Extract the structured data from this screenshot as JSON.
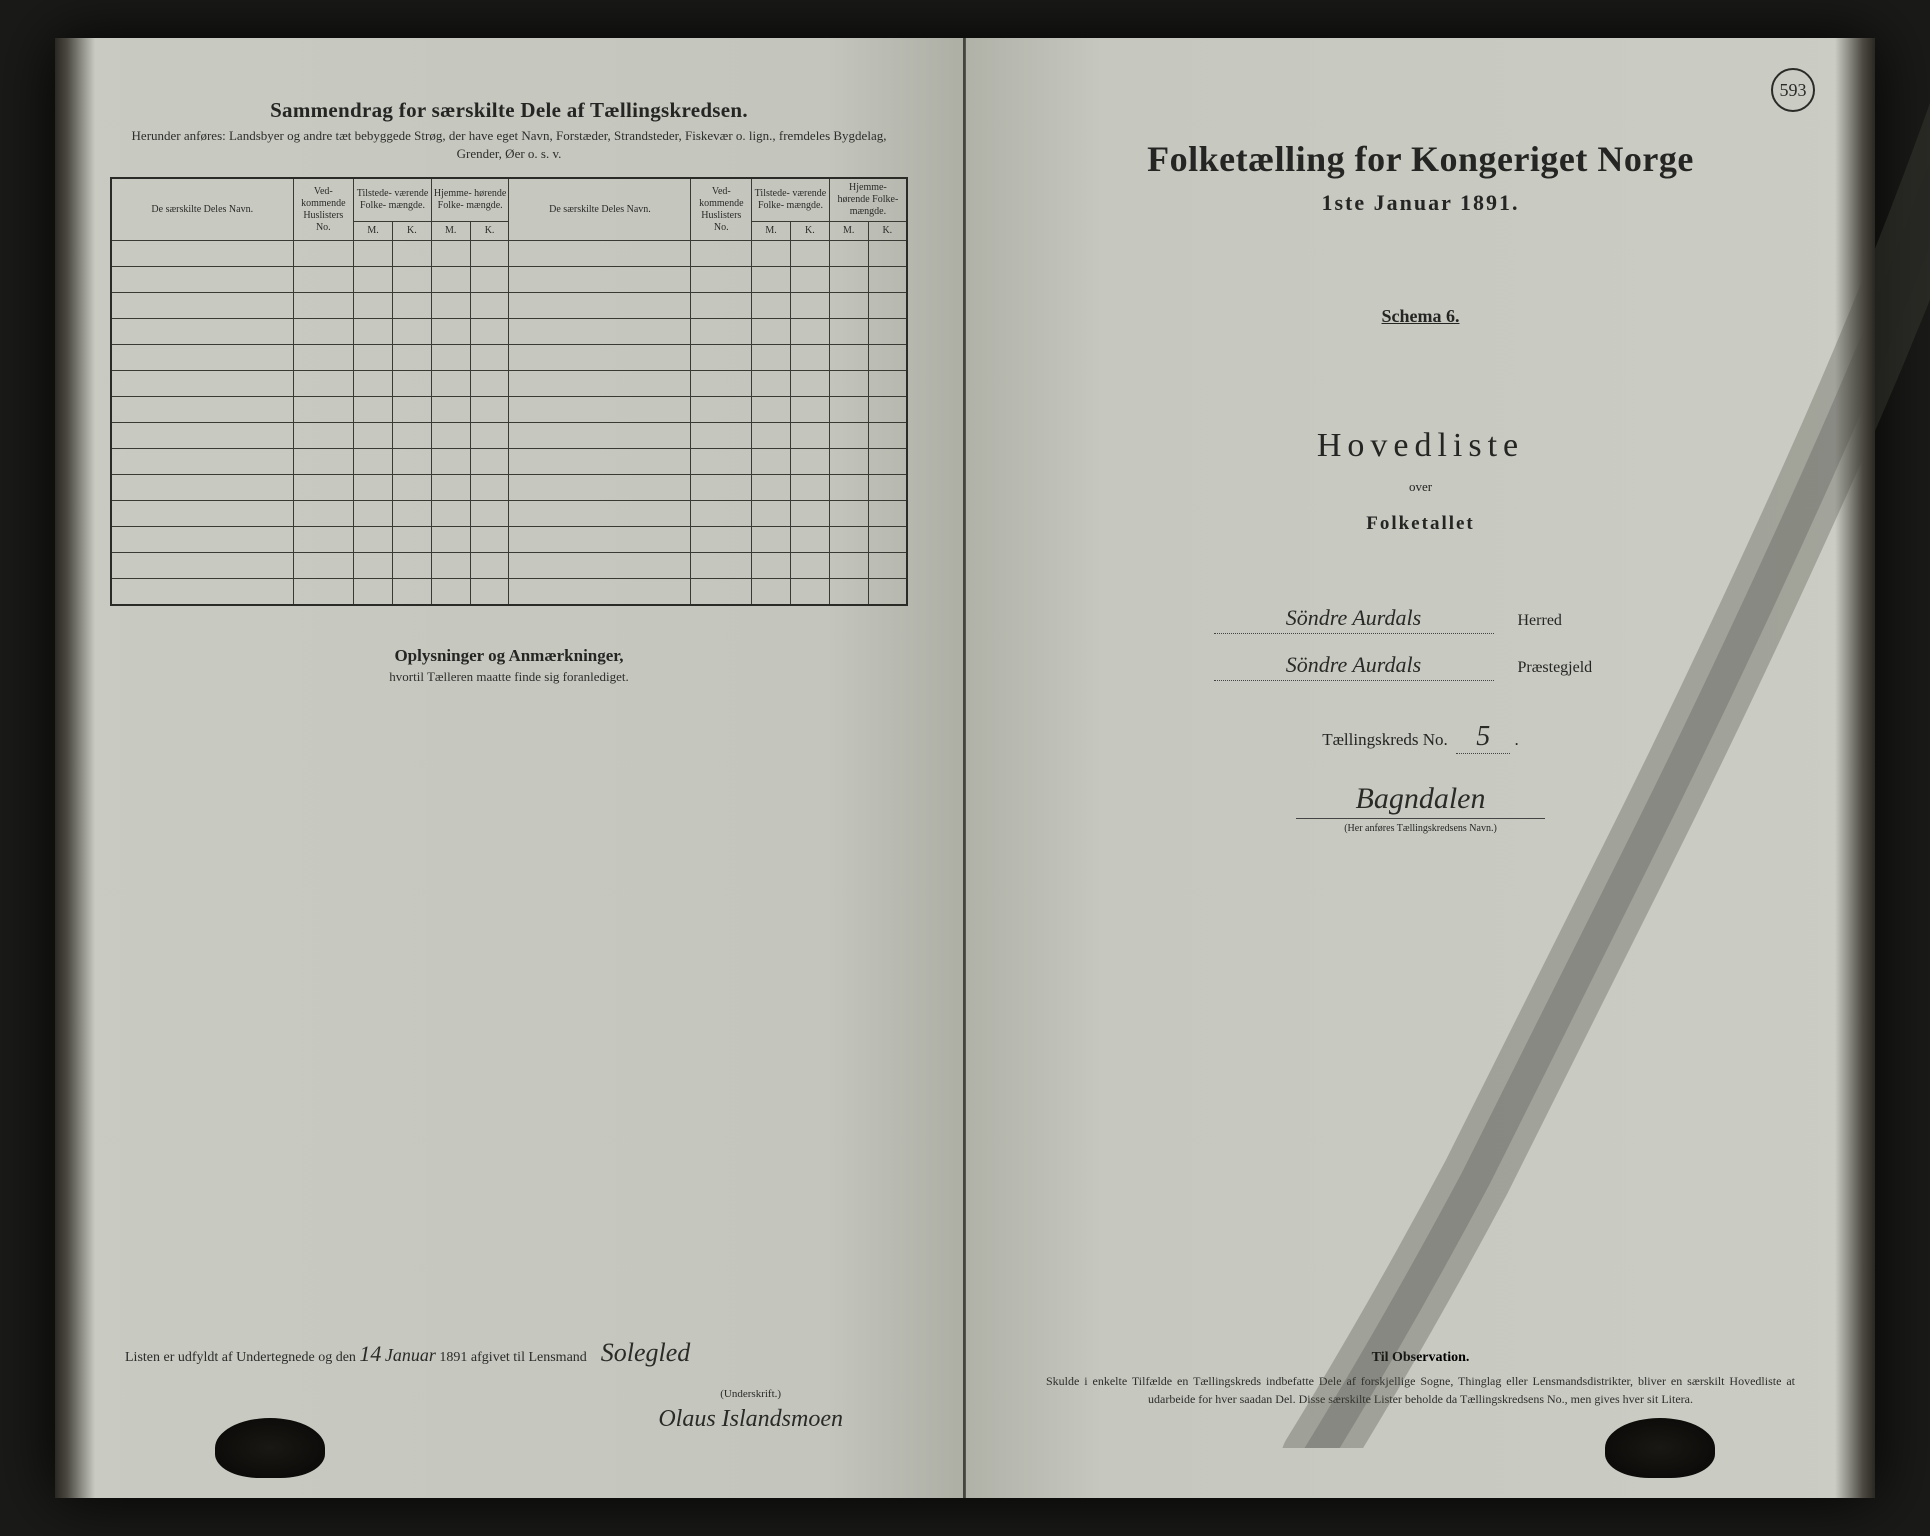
{
  "colors": {
    "paper": "#c6c8c0",
    "ink": "#252523",
    "border": "#2a2a27",
    "background": "#1a1a18"
  },
  "pageNumber": "593",
  "left": {
    "title": "Sammendrag for særskilte Dele af Tællingskredsen.",
    "subtitle": "Herunder anføres: Landsbyer og andre tæt bebyggede Strøg, der have eget Navn, Forstæder, Strandsteder, Fiskevær o. lign., fremdeles Bygdelag, Grender, Øer o. s. v.",
    "columns": {
      "name": "De særskilte Deles Navn.",
      "huslister": "Ved-\nkommende\nHuslisters\nNo.",
      "tilstede": "Tilstede-\nværende\nFolke-\nmængde.",
      "hjemme": "Hjemme-\nhørende\nFolke-\nmængde.",
      "m": "M.",
      "k": "K."
    },
    "blankRows": 14,
    "oplysninger": {
      "title": "Oplysninger og Anmærkninger,",
      "sub": "hvortil Tælleren maatte finde sig foranlediget."
    },
    "bottom": {
      "prefix": "Listen er udfyldt af Undertegnede og den",
      "date_day": "14",
      "date_month": "Januar",
      "date_year": "1891",
      "middle": "afgivet til Lensmand",
      "lensmand": "Solegled",
      "underskrift_label": "(Underskrift.)",
      "signature": "Olaus Islandsmoen"
    }
  },
  "right": {
    "title": "Folketælling for Kongeriget Norge",
    "date": "1ste Januar 1891.",
    "schema": "Schema 6.",
    "hovedliste": "Hovedliste",
    "over": "over",
    "folketallet": "Folketallet",
    "herred": {
      "value": "Söndre Aurdals",
      "label": "Herred"
    },
    "praestegjeld": {
      "value": "Söndre Aurdals",
      "label": "Præstegjeld"
    },
    "kreds": {
      "prefix": "Tællingskreds No.",
      "no": "5"
    },
    "kreds_name": "Bagndalen",
    "kreds_hint": "(Her anføres Tællingskredsens Navn.)",
    "observation": {
      "title": "Til Observation.",
      "text": "Skulde i enkelte Tilfælde en Tællingskreds indbefatte Dele af forskjellige Sogne, Thinglag eller Lensmandsdistrikter, bliver en særskilt Hovedliste at udarbeide for hver saadan Del. Disse særskilte Lister beholde da Tællingskredsens No., men gives hver sit Litera."
    }
  }
}
